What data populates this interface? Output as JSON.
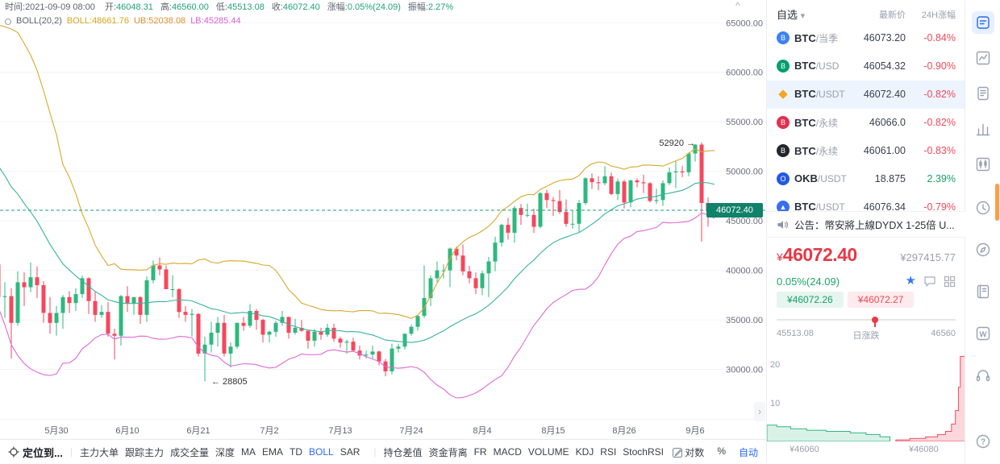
{
  "colors": {
    "up": "#2eb87f",
    "down": "#f5475d",
    "accent_blue": "#2a6af5",
    "price_red": "#e63946",
    "band_ub": "#d9a82a",
    "band_mb": "#38b2a0",
    "band_lb": "#de6ad8",
    "price_line": "#1d9c77",
    "price_badge_bg": "#11826a",
    "scroll_thumb": "#ff9d45"
  },
  "info_bar": {
    "time": {
      "label": "时间:",
      "value": "2021-09-09 08:00"
    },
    "ohlc": [
      {
        "label": "开:",
        "value": "46048.31"
      },
      {
        "label": "高:",
        "value": "46560.00"
      },
      {
        "label": "低:",
        "value": "45513.08"
      },
      {
        "label": "收:",
        "value": "46072.40"
      },
      {
        "label": "涨幅:",
        "value": "0.05%(24.09)"
      },
      {
        "label": "振幅:",
        "value": "2.27%"
      }
    ],
    "boll": {
      "name": "BOLL(20,2)",
      "mb_label": "BOLL:",
      "mb_value": "48661.76",
      "ub_label": "UB:",
      "ub_value": "52038.08",
      "lb_label": "LB:",
      "lb_value": "45285.44"
    }
  },
  "chart_data": {
    "type": "candlestick",
    "symbol": "BTC/USDT",
    "interval": "1D",
    "y_axis": {
      "range": [
        25000,
        67300
      ],
      "ticks": [
        {
          "label": "65000.00",
          "value": 65000
        },
        {
          "label": "60000.00",
          "value": 60000
        },
        {
          "label": "55000.00",
          "value": 55000
        },
        {
          "label": "50000.00",
          "value": 50000
        },
        {
          "label": "45000.00",
          "value": 45000
        },
        {
          "label": "40000.00",
          "value": 40000
        },
        {
          "label": "35000.00",
          "value": 35000
        },
        {
          "label": "30000.00",
          "value": 30000
        }
      ]
    },
    "x_labels": [
      {
        "label": "5月30",
        "candle": 28
      },
      {
        "label": "6月10",
        "candle": 39
      },
      {
        "label": "6月21",
        "candle": 50
      },
      {
        "label": "7月2",
        "candle": 61
      },
      {
        "label": "7月13",
        "candle": 72
      },
      {
        "label": "7月24",
        "candle": 83
      },
      {
        "label": "8月4",
        "candle": 94
      },
      {
        "label": "8月15",
        "candle": 105
      },
      {
        "label": "8月26",
        "candle": 116
      },
      {
        "label": "9月6",
        "candle": 127
      }
    ],
    "hidden_lead_candles": 20,
    "current_price": {
      "label": "46072.40",
      "value": 46072.4
    },
    "annotations": [
      {
        "text": "52920 →",
        "candle": 128,
        "price": 52920,
        "anchor": "end"
      },
      {
        "text": "← 28805",
        "candle": 51,
        "price": 28805,
        "anchor": "start"
      }
    ],
    "boll": {
      "period": 20,
      "mult": 2
    },
    "candles": [
      [
        56600,
        57200,
        56000,
        56600
      ],
      [
        56600,
        58900,
        56500,
        57200
      ],
      [
        57200,
        57900,
        53100,
        53200
      ],
      [
        53200,
        57700,
        52900,
        57400
      ],
      [
        57400,
        58300,
        55300,
        56400
      ],
      [
        56400,
        58600,
        55200,
        57300
      ],
      [
        57300,
        59500,
        56900,
        58800
      ],
      [
        58800,
        59200,
        56200,
        58200
      ],
      [
        58200,
        59500,
        53600,
        55800
      ],
      [
        55800,
        56800,
        54300,
        56700
      ],
      [
        56700,
        58000,
        48600,
        49100
      ],
      [
        49100,
        51300,
        46000,
        49700
      ],
      [
        49700,
        51500,
        48900,
        49800
      ],
      [
        49800,
        50600,
        46500,
        46700
      ],
      [
        46700,
        49800,
        43800,
        46400
      ],
      [
        46400,
        46600,
        42000,
        43500
      ],
      [
        43500,
        45800,
        42300,
        42900
      ],
      [
        42900,
        43500,
        30000,
        36700
      ],
      [
        36700,
        42400,
        35000,
        40600
      ],
      [
        40600,
        42200,
        33500,
        37300
      ],
      [
        37300,
        38800,
        35200,
        37400
      ],
      [
        37400,
        38200,
        31100,
        34700
      ],
      [
        34700,
        39900,
        34400,
        38800
      ],
      [
        38800,
        39800,
        36400,
        38300
      ],
      [
        38300,
        40800,
        37800,
        39300
      ],
      [
        39300,
        40400,
        37200,
        38500
      ],
      [
        38500,
        38900,
        34700,
        35700
      ],
      [
        35700,
        37300,
        33600,
        34700
      ],
      [
        34700,
        36400,
        33400,
        35700
      ],
      [
        35700,
        37500,
        34100,
        37300
      ],
      [
        37300,
        37900,
        35700,
        36700
      ],
      [
        36700,
        38200,
        35900,
        37600
      ],
      [
        37600,
        39500,
        37200,
        39200
      ],
      [
        39200,
        39300,
        35600,
        36900
      ],
      [
        36900,
        37900,
        34800,
        35500
      ],
      [
        35500,
        36500,
        35200,
        35800
      ],
      [
        35800,
        36800,
        33300,
        33600
      ],
      [
        33600,
        34100,
        31000,
        33400
      ],
      [
        33400,
        37500,
        32400,
        37400
      ],
      [
        37400,
        38400,
        35800,
        36700
      ],
      [
        36700,
        37300,
        35500,
        37300
      ],
      [
        37300,
        37400,
        34600,
        35500
      ],
      [
        35500,
        39400,
        34800,
        39000
      ],
      [
        39000,
        41000,
        38700,
        40500
      ],
      [
        40500,
        41300,
        39500,
        40100
      ],
      [
        40100,
        40500,
        38100,
        38100
      ],
      [
        38100,
        39500,
        37300,
        38100
      ],
      [
        38100,
        38200,
        35200,
        35800
      ],
      [
        35800,
        36400,
        34800,
        35500
      ],
      [
        35500,
        36100,
        33300,
        35600
      ],
      [
        35600,
        35700,
        31300,
        31600
      ],
      [
        31600,
        33300,
        28805,
        32500
      ],
      [
        32500,
        34800,
        31700,
        33700
      ],
      [
        33700,
        35300,
        32300,
        34700
      ],
      [
        34700,
        35500,
        31300,
        31600
      ],
      [
        31600,
        32700,
        30200,
        32300
      ],
      [
        32300,
        34700,
        32100,
        34700
      ],
      [
        34700,
        35300,
        33900,
        34400
      ],
      [
        34400,
        36600,
        34200,
        35900
      ],
      [
        35900,
        36100,
        34000,
        35000
      ],
      [
        35000,
        35100,
        32700,
        33500
      ],
      [
        33500,
        33900,
        32700,
        33800
      ],
      [
        33800,
        34900,
        33300,
        34700
      ],
      [
        34700,
        35900,
        34400,
        35300
      ],
      [
        35300,
        35300,
        33100,
        33700
      ],
      [
        33700,
        35100,
        33500,
        34200
      ],
      [
        34200,
        35000,
        33800,
        33900
      ],
      [
        33900,
        33900,
        32100,
        32900
      ],
      [
        32900,
        34100,
        32300,
        33800
      ],
      [
        33800,
        34200,
        33000,
        33500
      ],
      [
        33500,
        34600,
        33300,
        34200
      ],
      [
        34200,
        34600,
        32800,
        33100
      ],
      [
        33100,
        33300,
        32200,
        32700
      ],
      [
        32700,
        33000,
        31600,
        32800
      ],
      [
        32800,
        33200,
        31800,
        31900
      ],
      [
        31900,
        32400,
        31000,
        31400
      ],
      [
        31400,
        31900,
        31100,
        31500
      ],
      [
        31500,
        32400,
        31100,
        31800
      ],
      [
        31800,
        31900,
        30400,
        30800
      ],
      [
        30800,
        31050,
        29300,
        29800
      ],
      [
        29800,
        32600,
        29500,
        32100
      ],
      [
        32100,
        32600,
        31700,
        32300
      ],
      [
        32300,
        33600,
        32000,
        33600
      ],
      [
        33600,
        34500,
        33400,
        34300
      ],
      [
        34300,
        35400,
        33900,
        35400
      ],
      [
        35400,
        40500,
        35200,
        37200
      ],
      [
        37200,
        39500,
        36400,
        39200
      ],
      [
        39200,
        40900,
        38800,
        40000
      ],
      [
        40000,
        40600,
        39200,
        40000
      ],
      [
        40000,
        42300,
        38300,
        42200
      ],
      [
        42200,
        42400,
        41000,
        41500
      ],
      [
        41500,
        42600,
        39500,
        39900
      ],
      [
        39900,
        40450,
        38700,
        39200
      ],
      [
        39200,
        39800,
        37600,
        38200
      ],
      [
        38200,
        39960,
        37500,
        39700
      ],
      [
        39700,
        41350,
        37300,
        40900
      ],
      [
        40900,
        43400,
        39900,
        42800
      ],
      [
        42800,
        44700,
        42400,
        44600
      ],
      [
        44600,
        45300,
        43100,
        43800
      ],
      [
        43800,
        46500,
        42800,
        46300
      ],
      [
        46300,
        46700,
        44600,
        45600
      ],
      [
        45600,
        46740,
        45350,
        45600
      ],
      [
        45600,
        46230,
        43770,
        44400
      ],
      [
        44400,
        47890,
        44250,
        47800
      ],
      [
        47800,
        48150,
        46300,
        47100
      ],
      [
        47100,
        47400,
        45500,
        47000
      ],
      [
        47000,
        48100,
        45700,
        45900
      ],
      [
        45900,
        47160,
        44400,
        44700
      ],
      [
        44700,
        46000,
        44200,
        44700
      ],
      [
        44700,
        47100,
        43900,
        46800
      ],
      [
        46800,
        49400,
        46600,
        49300
      ],
      [
        49300,
        49800,
        48200,
        48900
      ],
      [
        48900,
        49500,
        48100,
        48800
      ],
      [
        48800,
        50500,
        48600,
        49500
      ],
      [
        49500,
        49860,
        47600,
        47700
      ],
      [
        47700,
        49270,
        47100,
        48970
      ],
      [
        48970,
        49160,
        46250,
        46850
      ],
      [
        46850,
        49150,
        46350,
        49080
      ],
      [
        49080,
        49300,
        48390,
        48900
      ],
      [
        48900,
        49650,
        47800,
        48800
      ],
      [
        48800,
        48900,
        46850,
        47000
      ],
      [
        47000,
        48250,
        46700,
        47100
      ],
      [
        47100,
        49100,
        46500,
        48800
      ],
      [
        48800,
        50400,
        48600,
        49900
      ],
      [
        49900,
        51000,
        48300,
        50000
      ],
      [
        50000,
        50550,
        49400,
        49900
      ],
      [
        49900,
        51900,
        49500,
        51800
      ],
      [
        51800,
        52750,
        50980,
        52700
      ],
      [
        52700,
        52920,
        42900,
        46800
      ],
      [
        46800,
        47350,
        44400,
        46000
      ],
      [
        46048.31,
        46560,
        45513.08,
        46072.4
      ]
    ]
  },
  "watchlist": {
    "tab": "自选",
    "caret": "▾",
    "col_price": "最新价",
    "col_change": "24H涨幅",
    "rows": [
      {
        "base": "BTC",
        "quote": "/当季",
        "price": "46073.20",
        "change": "-0.84%",
        "dir": "down",
        "icon": {
          "shape": "circle",
          "bg": "#3b82f6",
          "ch": "B"
        }
      },
      {
        "base": "BTC",
        "quote": "/USD",
        "price": "46054.32",
        "change": "-0.90%",
        "dir": "down",
        "icon": {
          "shape": "circle",
          "bg": "#00a06a",
          "ch": "B"
        }
      },
      {
        "base": "BTC",
        "quote": "/USDT",
        "price": "46072.40",
        "change": "-0.82%",
        "dir": "down",
        "selected": true,
        "icon": {
          "shape": "diamond",
          "bg": "#f5a623",
          "ch": "◆"
        }
      },
      {
        "base": "BTC",
        "quote": "/永续",
        "price": "46066.0",
        "change": "-0.82%",
        "dir": "down",
        "icon": {
          "shape": "circle",
          "bg": "#e0314f",
          "ch": "B"
        }
      },
      {
        "base": "BTC",
        "quote": "/永续",
        "price": "46061.00",
        "change": "-0.83%",
        "dir": "down",
        "icon": {
          "shape": "circle",
          "bg": "#23262d",
          "ch": "B"
        }
      },
      {
        "base": "OKB",
        "quote": "/USDT",
        "price": "18.875",
        "change": "2.39%",
        "dir": "up",
        "icon": {
          "shape": "circle",
          "bg": "#2458e5",
          "ch": "O"
        }
      },
      {
        "base": "BTC",
        "quote": "/USDT",
        "price": "46076.34",
        "change": "-0.79%",
        "dir": "down",
        "icon": {
          "shape": "circle",
          "bg": "#3b6ef0",
          "ch": "▲"
        }
      }
    ]
  },
  "announcement": {
    "text": "公告：幣安將上線DYDX 1-25倍 U..."
  },
  "ticker": {
    "currency": "¥",
    "price": "46072.40",
    "cny_value": "¥297415.77",
    "change": "0.05%(24.09)",
    "bid": "¥46072.26",
    "ask": "¥46072.27",
    "range": {
      "low": "45513.08",
      "label": "日涨跌",
      "high": "46560",
      "pos": 0.55
    }
  },
  "depth_chart": {
    "y_ticks": [
      {
        "label": "20",
        "value": 20
      },
      {
        "label": "10",
        "value": 10
      }
    ],
    "x_labels": [
      "¥46060",
      "¥46080"
    ],
    "bids": [
      [
        0,
        4.2
      ],
      [
        0.05,
        3.8
      ],
      [
        0.12,
        3.3
      ],
      [
        0.2,
        2.9
      ],
      [
        0.3,
        2.6
      ],
      [
        0.42,
        2.2
      ],
      [
        0.5,
        1.8
      ],
      [
        0.57,
        1.2
      ],
      [
        0.62,
        0.4
      ]
    ],
    "asks": [
      [
        0.65,
        0.4
      ],
      [
        0.72,
        0.8
      ],
      [
        0.8,
        1.2
      ],
      [
        0.86,
        1.8
      ],
      [
        0.9,
        2.6
      ],
      [
        0.93,
        4.5
      ],
      [
        0.95,
        8
      ],
      [
        0.965,
        14
      ],
      [
        0.975,
        22
      ],
      [
        1,
        22
      ]
    ]
  },
  "bottom_bar": {
    "locate": "定位到...",
    "groups": [
      {
        "items": [
          "主力大单",
          "跟踪主力",
          "成交全量",
          "深度",
          "MA",
          "EMA",
          "TD",
          "BOLL",
          "SAR"
        ],
        "active": "BOLL"
      },
      {
        "items": [
          "持仓差值",
          "资金背离",
          "FR",
          "MACD",
          "VOLUME",
          "KDJ",
          "RSI",
          "StochRSI"
        ],
        "active": ""
      }
    ],
    "right": {
      "items": [
        "对数",
        "%",
        "自动"
      ],
      "active": "自动"
    }
  },
  "toolbar": {
    "icons": [
      {
        "name": "market-panel-icon",
        "key": "market",
        "selected": true
      },
      {
        "name": "line-chart-icon",
        "key": "trend"
      },
      {
        "name": "order-edit-icon",
        "key": "order"
      },
      {
        "name": "bar-chart-icon",
        "key": "stats"
      },
      {
        "name": "kline-box-icon",
        "key": "kline"
      },
      {
        "name": "clock-icon",
        "key": "history"
      },
      {
        "name": "compass-icon",
        "key": "explore"
      },
      {
        "name": "notebook-icon",
        "key": "ledger"
      },
      {
        "name": "w-badge-icon",
        "key": "web"
      },
      {
        "name": "headset-icon",
        "key": "support"
      },
      {
        "name": "help-icon",
        "key": "help"
      }
    ]
  },
  "misc": {
    "scroll_caret": "^",
    "collapse_chevron": "›"
  }
}
